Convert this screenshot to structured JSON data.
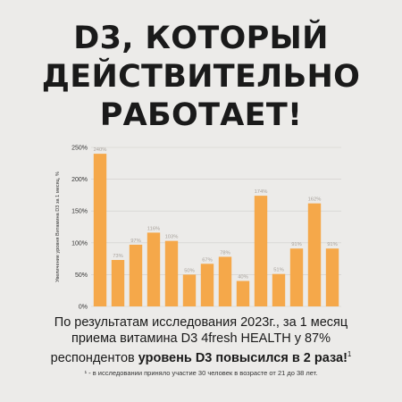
{
  "headline": {
    "line1": "D3, КОТОРЫЙ",
    "line2": "ДЕЙСТВИТЕЛЬНО",
    "line3": "РАБОТАЕТ!"
  },
  "chart_data": {
    "type": "bar",
    "categories": [
      "",
      "",
      "",
      "",
      "",
      "",
      "",
      "",
      "",
      "",
      "",
      "",
      "",
      ""
    ],
    "values": [
      240,
      73,
      97,
      116,
      103,
      50,
      67,
      78,
      40,
      174,
      51,
      91,
      162,
      91
    ],
    "data_labels": [
      "240%",
      "73%",
      "97%",
      "116%",
      "103%",
      "50%",
      "67%",
      "78%",
      "40%",
      "174%",
      "51%",
      "91%",
      "162%",
      "91%"
    ],
    "ylabel": "Увеличение уровня Витамина D3 за 1 месяц, %",
    "yticks": [
      "0%",
      "50%",
      "100%",
      "150%",
      "200%",
      "250%"
    ],
    "ylim": [
      0,
      250
    ],
    "grid": true,
    "bar_color": "#f5a84a"
  },
  "caption": {
    "line1": "По результатам исследования 2023г., за 1 месяц",
    "line2": "приема витамина D3 4fresh HEALTH у 87%",
    "line3_plain": "респондентов ",
    "line3_bold": "уровень D3 повысился в 2 раза!",
    "line3_sup": "1"
  },
  "footnote": {
    "marker": "¹",
    "text": " - в исследовании приняло участие 30 человек в возрасте от 21 до 38 лет."
  }
}
